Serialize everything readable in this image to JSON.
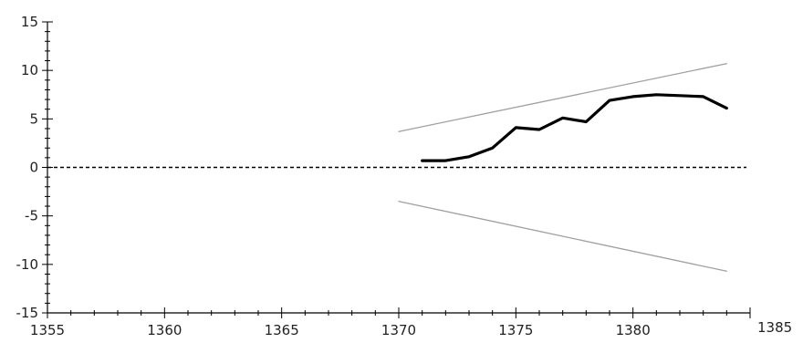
{
  "chart_data": {
    "type": "line",
    "title": "",
    "xlabel": "",
    "ylabel": "",
    "xlim": [
      1355,
      1385
    ],
    "ylim": [
      -15,
      15
    ],
    "x_ticks": [
      1355,
      1360,
      1365,
      1370,
      1375,
      1380,
      1385
    ],
    "y_ticks": [
      15,
      10,
      5,
      0,
      -5,
      -10,
      -15
    ],
    "x_tick_labels": [
      "1355",
      "1360",
      "1365",
      "1370",
      "1375",
      "1380",
      "1385"
    ],
    "y_tick_labels": [
      "15",
      "10",
      "5",
      "0",
      "-5",
      "-10",
      "-15"
    ],
    "grid": false,
    "reference_line": {
      "y": 0,
      "style": "dashed",
      "color": "#000000"
    },
    "series": [
      {
        "style": "solid-thick",
        "color": "#000000",
        "x": [
          1371,
          1372,
          1373,
          1374,
          1375,
          1376,
          1377,
          1378,
          1379,
          1380,
          1381,
          1382,
          1383,
          1384
        ],
        "y": [
          0.7,
          0.7,
          1.1,
          2.0,
          4.1,
          3.9,
          5.1,
          4.7,
          6.9,
          7.3,
          7.5,
          7.4,
          7.3,
          6.1
        ]
      },
      {
        "style": "thin",
        "color": "#a0a0a0",
        "x": [
          1370,
          1384
        ],
        "y": [
          3.7,
          10.7
        ]
      },
      {
        "style": "thin",
        "color": "#a0a0a0",
        "x": [
          1370,
          1384
        ],
        "y": [
          -3.5,
          -10.7
        ]
      }
    ]
  }
}
